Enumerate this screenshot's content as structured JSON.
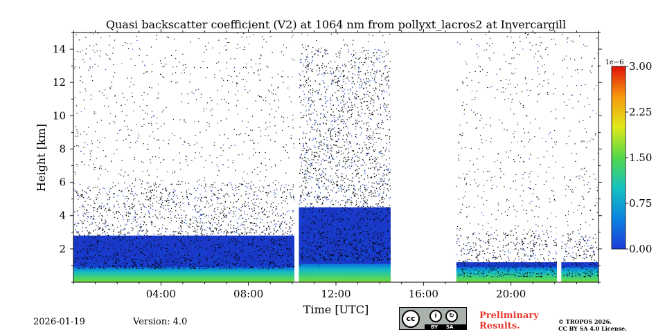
{
  "chart_data": {
    "type": "heatmap",
    "title": "Quasi backscatter coefficient (V2) at 1064 nm from pollyxt_lacros2 at Invercargill",
    "xlabel": "Time [UTC]",
    "ylabel": "Height [km]",
    "xlim": [
      0,
      24
    ],
    "ylim": [
      0,
      15
    ],
    "x_ticks": [
      4,
      8,
      12,
      16,
      20
    ],
    "x_tick_labels": [
      "04:00",
      "08:00",
      "12:00",
      "16:00",
      "20:00"
    ],
    "y_ticks": [
      2,
      4,
      6,
      8,
      10,
      12,
      14
    ],
    "y_tick_labels": [
      "2",
      "4",
      "6",
      "8",
      "10",
      "12",
      "14"
    ],
    "colorbar": {
      "min": 0,
      "max": 3,
      "exponent_label": "1e−6",
      "ticks": [
        0,
        0.75,
        1.5,
        2.25,
        3
      ],
      "tick_labels": [
        "0.00",
        "0.75",
        "1.50",
        "2.25",
        "3.00"
      ],
      "colormap": [
        "#1c3cd6",
        "#0a84e0",
        "#16c2c0",
        "#52d84a",
        "#dfe81a",
        "#f79a10",
        "#e01208"
      ]
    },
    "gaps": [
      [
        10.1,
        10.3
      ],
      [
        14.5,
        17.5
      ],
      [
        22.1,
        22.3
      ]
    ],
    "segments": [
      {
        "t_start": 0,
        "t_end": 10.1,
        "surface_layer_top_km": 0.9,
        "aerosol_layer_top_km": 2.8,
        "noise_top_km": 6.0
      },
      {
        "t_start": 10.3,
        "t_end": 14.5,
        "surface_layer_top_km": 1.1,
        "aerosol_layer_top_km": 4.5,
        "noise_top_km": 14.0
      },
      {
        "t_start": 17.5,
        "t_end": 24,
        "surface_layer_top_km": 0.9,
        "aerosol_layer_top_km": 1.2,
        "noise_top_km": 3.0
      }
    ]
  },
  "footer": {
    "date": "2026-01-19",
    "version": "Version: 4.0",
    "preliminary": "Preliminary\nResults.",
    "copyright": "© TROPOS 2026.\nCC BY SA 4.0 License.",
    "license_badge": {
      "cc": "cc",
      "by": "BY",
      "sa": "SA"
    }
  }
}
